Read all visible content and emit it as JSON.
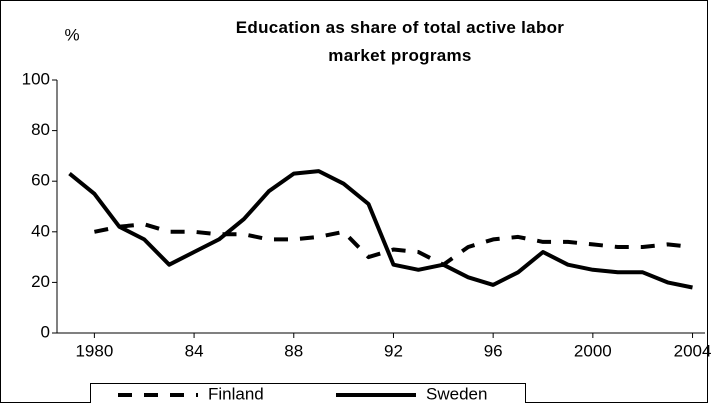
{
  "chart_data": {
    "type": "line",
    "title": "Education as share of total active labor market programs",
    "y_label": "%",
    "x": [
      1979,
      1980,
      1981,
      1982,
      1983,
      1984,
      1985,
      1986,
      1987,
      1988,
      1989,
      1990,
      1991,
      1992,
      1993,
      1994,
      1995,
      1996,
      1997,
      1998,
      1999,
      2000,
      2001,
      2002,
      2003,
      2004
    ],
    "series": [
      {
        "name": "Finland",
        "color": "#000000",
        "dash": true,
        "values": [
          null,
          40,
          42,
          43,
          40,
          40,
          39,
          39,
          37,
          37,
          38,
          40,
          30,
          33,
          32,
          27,
          34,
          37,
          38,
          36,
          36,
          35,
          34,
          34,
          35,
          34
        ]
      },
      {
        "name": "Sweden",
        "color": "#000000",
        "dash": false,
        "values": [
          63,
          55,
          42,
          37,
          27,
          32,
          37,
          45,
          56,
          63,
          64,
          59,
          51,
          27,
          25,
          27,
          22,
          19,
          24,
          32,
          27,
          25,
          24,
          24,
          20,
          18
        ]
      }
    ],
    "xlim": [
      1978.5,
      2004.5
    ],
    "xticks": [
      1980,
      {
        "value": 1984,
        "label": "84"
      },
      {
        "value": 1988,
        "label": "88"
      },
      {
        "value": 1992,
        "label": "92"
      },
      {
        "value": 1996,
        "label": "96"
      },
      2000,
      2004
    ],
    "ylim": [
      0,
      100
    ],
    "yticks": [
      0,
      20,
      40,
      60,
      80,
      100
    ]
  }
}
